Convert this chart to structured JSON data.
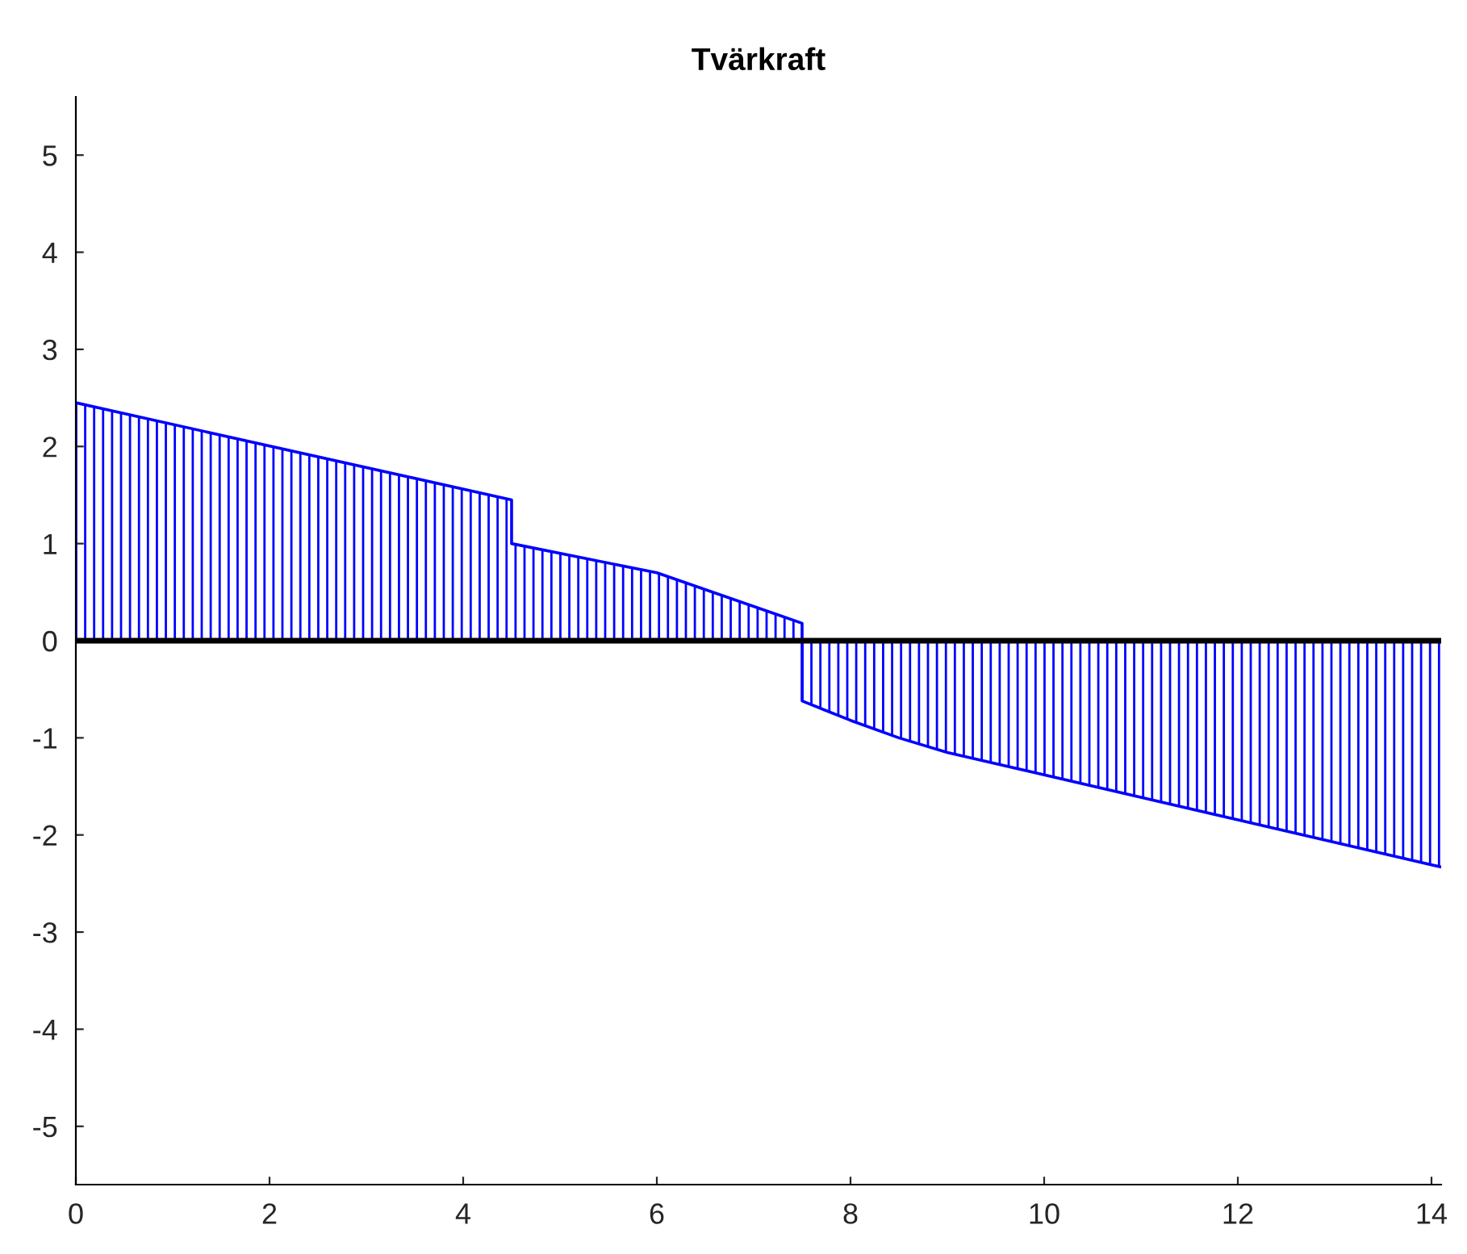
{
  "chart_data": {
    "type": "area",
    "title": "Tvärkraft",
    "series": [
      {
        "color": "#0000ff",
        "x": [
          0,
          4.5,
          4.5,
          6,
          7.5,
          7.5,
          8,
          8.5,
          9,
          14.1
        ],
        "values": [
          2.45,
          1.45,
          1.0,
          0.7,
          0.18,
          -0.62,
          -0.82,
          -1.0,
          -1.15,
          -2.33
        ]
      }
    ],
    "xlim": [
      0,
      14.1
    ],
    "xticks": [
      0,
      2,
      4,
      6,
      8,
      10,
      12,
      14
    ],
    "ylim": [
      -5.6,
      5.6
    ],
    "yticks": [
      -5,
      -4,
      -3,
      -2,
      -1,
      0,
      1,
      2,
      3,
      4,
      5
    ],
    "ref_lines": [
      {
        "axis": "y",
        "value": 0,
        "color": "#000000"
      }
    ],
    "grid": false,
    "legend": false
  }
}
